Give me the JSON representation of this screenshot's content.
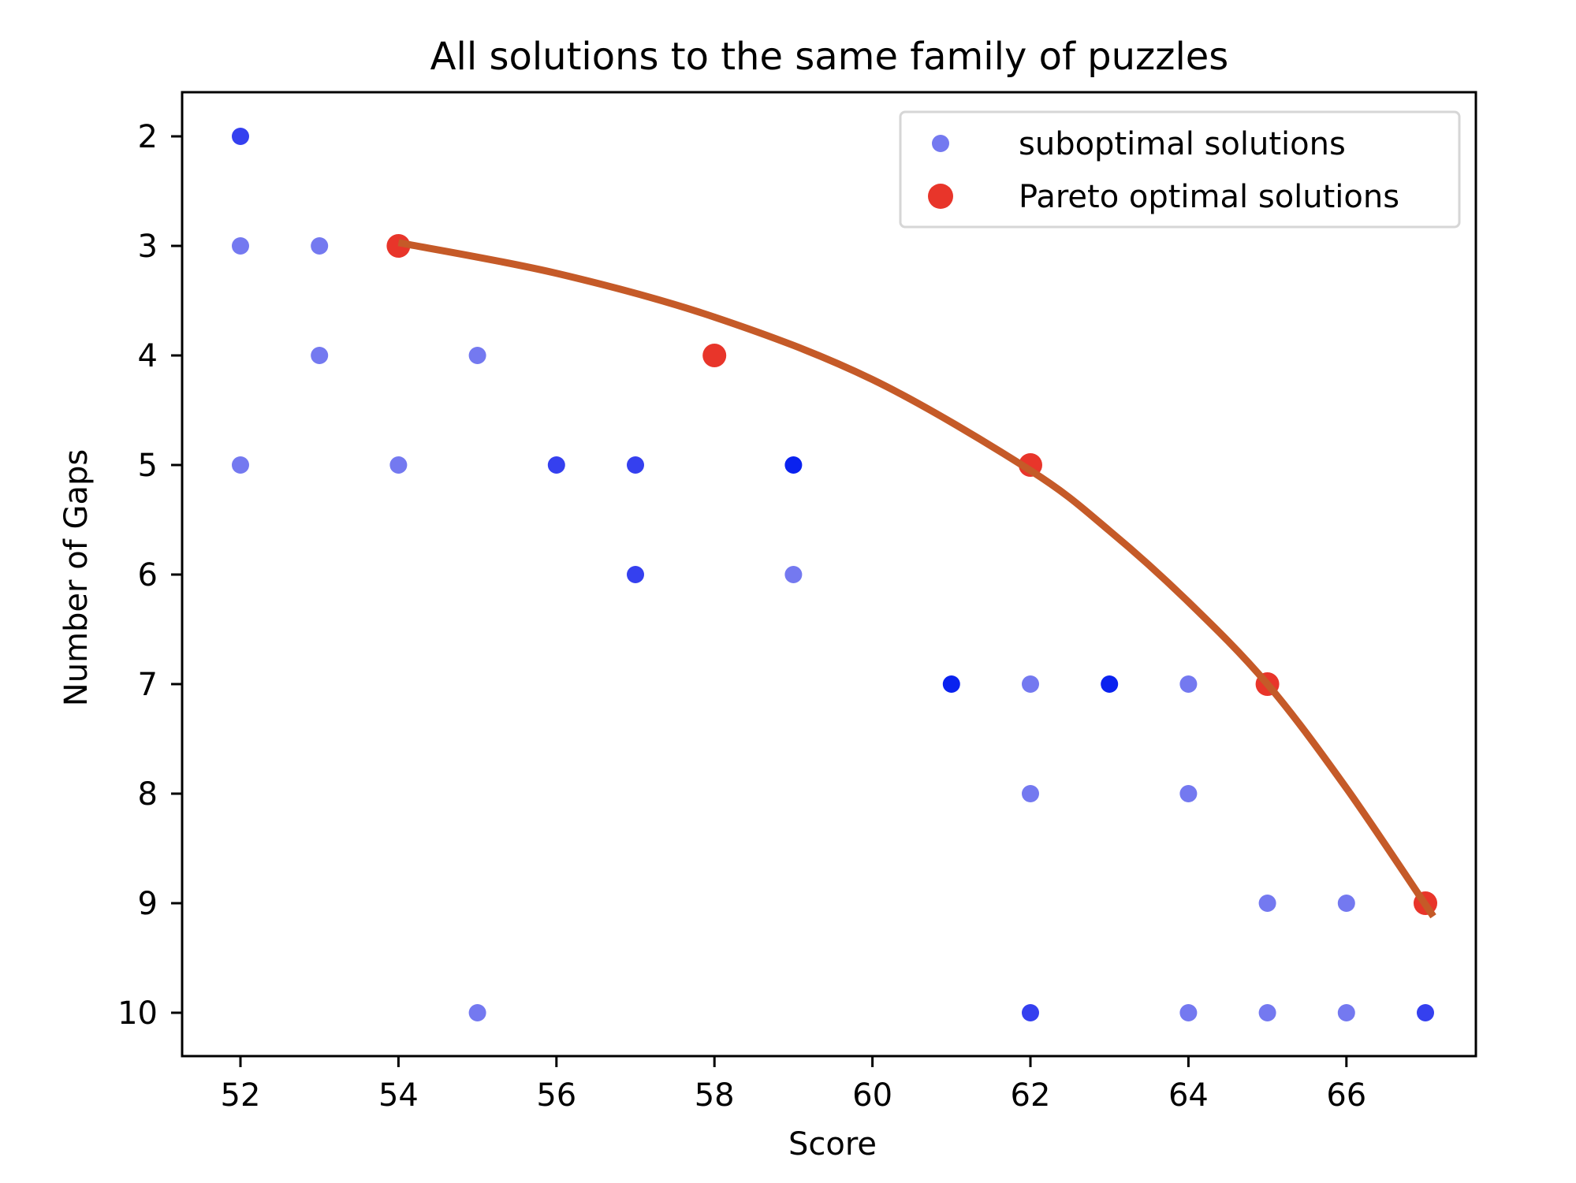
{
  "chart_data": {
    "type": "scatter",
    "title": "All solutions to the same family of puzzles",
    "xlabel": "Score",
    "ylabel": "Number of Gaps",
    "xlim": [
      51.25,
      67.8
    ],
    "ylim": [
      10.4,
      1.6
    ],
    "y_inverted": true,
    "grid": false,
    "legend_position": "upper right",
    "x_ticks": [
      52,
      54,
      56,
      58,
      60,
      62,
      64,
      66
    ],
    "y_ticks": [
      2,
      3,
      4,
      5,
      6,
      7,
      8,
      9,
      10
    ],
    "series": [
      {
        "name": "suboptimal solutions",
        "color": "#7479f0",
        "note": "semi-transparent markers; darker shade indicates overlapping duplicate solutions",
        "points": [
          {
            "x": 52,
            "y": 2,
            "count": 2
          },
          {
            "x": 52,
            "y": 3,
            "count": 1
          },
          {
            "x": 53,
            "y": 3,
            "count": 1
          },
          {
            "x": 53,
            "y": 4,
            "count": 1
          },
          {
            "x": 55,
            "y": 4,
            "count": 1
          },
          {
            "x": 52,
            "y": 5,
            "count": 1
          },
          {
            "x": 54,
            "y": 5,
            "count": 1
          },
          {
            "x": 56,
            "y": 5,
            "count": 2
          },
          {
            "x": 57,
            "y": 5,
            "count": 2
          },
          {
            "x": 59,
            "y": 5,
            "count": 3
          },
          {
            "x": 57,
            "y": 6,
            "count": 2
          },
          {
            "x": 59,
            "y": 6,
            "count": 1
          },
          {
            "x": 61,
            "y": 7,
            "count": 3
          },
          {
            "x": 62,
            "y": 7,
            "count": 1
          },
          {
            "x": 63,
            "y": 7,
            "count": 3
          },
          {
            "x": 64,
            "y": 7,
            "count": 1
          },
          {
            "x": 62,
            "y": 8,
            "count": 1
          },
          {
            "x": 64,
            "y": 8,
            "count": 1
          },
          {
            "x": 65,
            "y": 9,
            "count": 1
          },
          {
            "x": 66,
            "y": 9,
            "count": 1
          },
          {
            "x": 55,
            "y": 10,
            "count": 1
          },
          {
            "x": 62,
            "y": 10,
            "count": 2
          },
          {
            "x": 64,
            "y": 10,
            "count": 1
          },
          {
            "x": 65,
            "y": 10,
            "count": 1
          },
          {
            "x": 66,
            "y": 10,
            "count": 1
          },
          {
            "x": 67,
            "y": 10,
            "count": 2
          }
        ]
      },
      {
        "name": "Pareto optimal solutions",
        "color": "#e8352a",
        "points": [
          {
            "x": 54,
            "y": 3
          },
          {
            "x": 58,
            "y": 4
          },
          {
            "x": 62,
            "y": 5
          },
          {
            "x": 65,
            "y": 7
          },
          {
            "x": 67,
            "y": 9
          }
        ]
      }
    ],
    "pareto_front_curve": {
      "color": "#c55a28",
      "points": [
        {
          "x": 54.0,
          "y": 2.97
        },
        {
          "x": 56.0,
          "y": 3.25
        },
        {
          "x": 58.0,
          "y": 3.65
        },
        {
          "x": 60.0,
          "y": 4.22
        },
        {
          "x": 62.0,
          "y": 5.05
        },
        {
          "x": 63.0,
          "y": 5.6
        },
        {
          "x": 64.0,
          "y": 6.25
        },
        {
          "x": 65.0,
          "y": 7.0
        },
        {
          "x": 66.0,
          "y": 7.95
        },
        {
          "x": 67.1,
          "y": 9.12
        }
      ]
    }
  },
  "colors": {
    "shade_1": "#7479f0",
    "shade_2": "#3540ef",
    "shade_3": "#0a22ef",
    "pareto": "#e8352a",
    "curve": "#c55a28",
    "legend_border": "#d6d6d6"
  }
}
